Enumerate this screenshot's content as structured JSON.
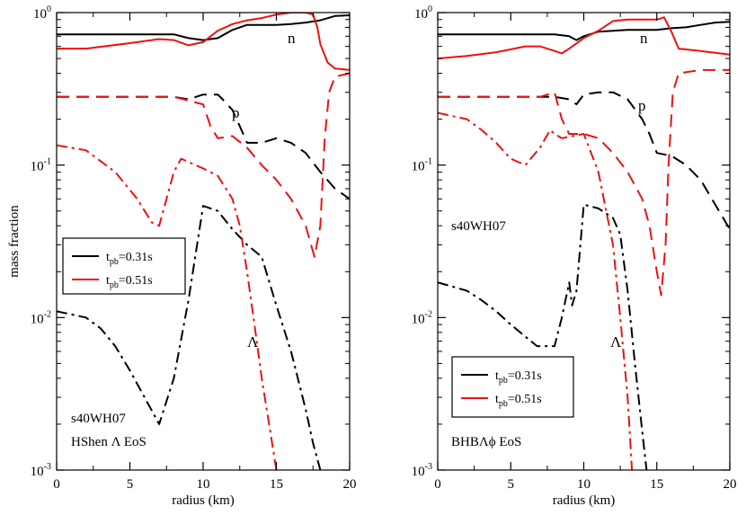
{
  "chart_data": [
    {
      "type": "line",
      "panel": "left",
      "xlabel": "radius (km)",
      "ylabel": "mass fraction",
      "xlim": [
        0,
        20
      ],
      "ylim": [
        0.001,
        1
      ],
      "yscale": "log",
      "xticks": [
        "0",
        "5",
        "10",
        "15",
        "20"
      ],
      "yticks": [
        {
          "base": "10",
          "exp": "0"
        },
        {
          "base": "10",
          "exp": "-1"
        },
        {
          "base": "10",
          "exp": "-2"
        },
        {
          "base": "10",
          "exp": "-3"
        }
      ],
      "legend": [
        {
          "text": "t",
          "sub": "pb",
          "suffix": "=0.31s",
          "color": "#000000"
        },
        {
          "text": "t",
          "sub": "pb",
          "suffix": "=0.51s",
          "color": "#ee1111"
        }
      ],
      "annotations": {
        "n": "n",
        "p": "p",
        "lambda": "Λ",
        "model": "s40WH07",
        "eos": "HShen Λ EoS"
      },
      "series": [
        {
          "name": "n t_pb=0.31s",
          "color": "#000000",
          "dash": "solid",
          "points": [
            [
              0,
              0.72
            ],
            [
              4,
              0.72
            ],
            [
              8,
              0.72
            ],
            [
              9,
              0.68
            ],
            [
              10,
              0.66
            ],
            [
              11,
              0.68
            ],
            [
              12,
              0.77
            ],
            [
              13,
              0.83
            ],
            [
              14,
              0.83
            ],
            [
              15,
              0.83
            ],
            [
              16,
              0.84
            ],
            [
              17,
              0.86
            ],
            [
              18,
              0.89
            ],
            [
              19,
              0.95
            ],
            [
              20,
              0.96
            ]
          ]
        },
        {
          "name": "n t_pb=0.51s",
          "color": "#ee1111",
          "dash": "solid",
          "points": [
            [
              0,
              0.58
            ],
            [
              2,
              0.58
            ],
            [
              5,
              0.63
            ],
            [
              7,
              0.67
            ],
            [
              8,
              0.66
            ],
            [
              9,
              0.61
            ],
            [
              10,
              0.64
            ],
            [
              11,
              0.76
            ],
            [
              12,
              0.84
            ],
            [
              13,
              0.89
            ],
            [
              14,
              0.92
            ],
            [
              15,
              0.97
            ],
            [
              16,
              1.0
            ],
            [
              17,
              1.0
            ],
            [
              17.5,
              0.97
            ],
            [
              17.8,
              0.8
            ],
            [
              18.0,
              0.62
            ],
            [
              18.5,
              0.47
            ],
            [
              19,
              0.43
            ],
            [
              20,
              0.42
            ]
          ]
        },
        {
          "name": "p t_pb=0.31s",
          "color": "#000000",
          "dash": "dash",
          "points": [
            [
              0,
              0.28
            ],
            [
              4,
              0.28
            ],
            [
              8,
              0.28
            ],
            [
              9,
              0.27
            ],
            [
              10,
              0.29
            ],
            [
              11,
              0.29
            ],
            [
              11.5,
              0.26
            ],
            [
              12,
              0.23
            ],
            [
              12.5,
              0.18
            ],
            [
              13,
              0.14
            ],
            [
              14,
              0.14
            ],
            [
              15,
              0.15
            ],
            [
              16,
              0.14
            ],
            [
              17,
              0.12
            ],
            [
              18,
              0.09
            ],
            [
              19,
              0.07
            ],
            [
              20,
              0.06
            ]
          ]
        },
        {
          "name": "p t_pb=0.51s",
          "color": "#ee1111",
          "dash": "dash",
          "points": [
            [
              0,
              0.28
            ],
            [
              6,
              0.28
            ],
            [
              8,
              0.28
            ],
            [
              10,
              0.25
            ],
            [
              10.5,
              0.18
            ],
            [
              11,
              0.15
            ],
            [
              12,
              0.155
            ],
            [
              13,
              0.13
            ],
            [
              14,
              0.1
            ],
            [
              15,
              0.08
            ],
            [
              16,
              0.06
            ],
            [
              17,
              0.04
            ],
            [
              17.6,
              0.025
            ],
            [
              18,
              0.04
            ],
            [
              18.3,
              0.15
            ],
            [
              18.6,
              0.3
            ],
            [
              19,
              0.38
            ],
            [
              20,
              0.4
            ]
          ]
        },
        {
          "name": "Lambda t_pb=0.31s",
          "color": "#000000",
          "dash": "dashdot",
          "points": [
            [
              0,
              0.011
            ],
            [
              2,
              0.01
            ],
            [
              3,
              0.0085
            ],
            [
              4,
              0.0065
            ],
            [
              5,
              0.0045
            ],
            [
              6,
              0.003
            ],
            [
              7,
              0.002
            ],
            [
              8,
              0.004
            ],
            [
              9,
              0.013
            ],
            [
              10,
              0.054
            ],
            [
              11,
              0.05
            ],
            [
              12,
              0.038
            ],
            [
              13,
              0.03
            ],
            [
              14,
              0.025
            ],
            [
              15,
              0.012
            ],
            [
              16,
              0.006
            ],
            [
              17,
              0.0025
            ],
            [
              17.5,
              0.0015
            ],
            [
              18,
              0.001
            ]
          ]
        },
        {
          "name": "Lambda t_pb=0.51s",
          "color": "#ee1111",
          "dash": "dashdot",
          "points": [
            [
              0,
              0.135
            ],
            [
              2,
              0.125
            ],
            [
              4,
              0.09
            ],
            [
              5.5,
              0.06
            ],
            [
              6.5,
              0.042
            ],
            [
              7,
              0.04
            ],
            [
              7.5,
              0.06
            ],
            [
              8,
              0.09
            ],
            [
              8.5,
              0.11
            ],
            [
              10,
              0.095
            ],
            [
              11,
              0.085
            ],
            [
              12,
              0.06
            ],
            [
              12.5,
              0.04
            ],
            [
              13,
              0.02
            ],
            [
              13.5,
              0.009
            ],
            [
              14,
              0.004
            ],
            [
              14.5,
              0.002
            ],
            [
              15,
              0.001
            ]
          ]
        }
      ]
    },
    {
      "type": "line",
      "panel": "right",
      "xlabel": "radius (km)",
      "ylabel": "",
      "xlim": [
        0,
        20
      ],
      "ylim": [
        0.001,
        1
      ],
      "yscale": "log",
      "xticks": [
        "0",
        "5",
        "10",
        "15",
        "20"
      ],
      "yticks": [
        {
          "base": "10",
          "exp": "0"
        },
        {
          "base": "10",
          "exp": "-1"
        },
        {
          "base": "10",
          "exp": "-2"
        },
        {
          "base": "10",
          "exp": "-3"
        }
      ],
      "legend": [
        {
          "text": "t",
          "sub": "pb",
          "suffix": "=0.31s",
          "color": "#000000"
        },
        {
          "text": "t",
          "sub": "pb",
          "suffix": "=0.51s",
          "color": "#ee1111"
        }
      ],
      "annotations": {
        "n": "n",
        "p": "p",
        "lambda": "Λ",
        "model": "s40WH07",
        "eos": "BHBΛϕ EoS"
      },
      "series": [
        {
          "name": "n t_pb=0.31s",
          "color": "#000000",
          "dash": "solid",
          "points": [
            [
              0,
              0.72
            ],
            [
              4,
              0.72
            ],
            [
              8,
              0.72
            ],
            [
              9,
              0.7
            ],
            [
              9.5,
              0.66
            ],
            [
              10,
              0.7
            ],
            [
              11,
              0.75
            ],
            [
              12,
              0.76
            ],
            [
              13,
              0.77
            ],
            [
              14,
              0.77
            ],
            [
              15,
              0.77
            ],
            [
              16,
              0.79
            ],
            [
              17,
              0.8
            ],
            [
              18,
              0.83
            ],
            [
              19,
              0.86
            ],
            [
              20,
              0.87
            ]
          ]
        },
        {
          "name": "n t_pb=0.51s",
          "color": "#ee1111",
          "dash": "solid",
          "points": [
            [
              0,
              0.5
            ],
            [
              2,
              0.52
            ],
            [
              4,
              0.55
            ],
            [
              6,
              0.6
            ],
            [
              7,
              0.6
            ],
            [
              8,
              0.56
            ],
            [
              8.5,
              0.54
            ],
            [
              9,
              0.58
            ],
            [
              10,
              0.68
            ],
            [
              11,
              0.76
            ],
            [
              12,
              0.88
            ],
            [
              13,
              0.9
            ],
            [
              14,
              0.9
            ],
            [
              15,
              0.9
            ],
            [
              15.5,
              0.93
            ],
            [
              16,
              0.75
            ],
            [
              16.5,
              0.58
            ],
            [
              18,
              0.56
            ],
            [
              20,
              0.53
            ]
          ]
        },
        {
          "name": "p t_pb=0.31s",
          "color": "#000000",
          "dash": "dash",
          "points": [
            [
              0,
              0.28
            ],
            [
              4,
              0.28
            ],
            [
              8,
              0.28
            ],
            [
              9,
              0.27
            ],
            [
              9.5,
              0.25
            ],
            [
              10,
              0.29
            ],
            [
              11,
              0.3
            ],
            [
              12,
              0.3
            ],
            [
              13,
              0.27
            ],
            [
              14,
              0.2
            ],
            [
              14.5,
              0.16
            ],
            [
              15,
              0.12
            ],
            [
              16,
              0.115
            ],
            [
              17,
              0.1
            ],
            [
              18,
              0.08
            ],
            [
              19,
              0.055
            ],
            [
              20,
              0.038
            ]
          ]
        },
        {
          "name": "p t_pb=0.51s",
          "color": "#ee1111",
          "dash": "dash",
          "points": [
            [
              0,
              0.28
            ],
            [
              6,
              0.28
            ],
            [
              7,
              0.28
            ],
            [
              8,
              0.3
            ],
            [
              8.5,
              0.2
            ],
            [
              9,
              0.16
            ],
            [
              10,
              0.16
            ],
            [
              11,
              0.15
            ],
            [
              12,
              0.12
            ],
            [
              13,
              0.09
            ],
            [
              14,
              0.06
            ],
            [
              14.5,
              0.04
            ],
            [
              15,
              0.02
            ],
            [
              15.3,
              0.014
            ],
            [
              15.6,
              0.03
            ],
            [
              15.8,
              0.1
            ],
            [
              16.1,
              0.3
            ],
            [
              16.5,
              0.4
            ],
            [
              18,
              0.42
            ],
            [
              20,
              0.42
            ]
          ]
        },
        {
          "name": "Lambda t_pb=0.31s",
          "color": "#000000",
          "dash": "dashdot",
          "points": [
            [
              0,
              0.017
            ],
            [
              2,
              0.015
            ],
            [
              3,
              0.013
            ],
            [
              4,
              0.011
            ],
            [
              5,
              0.009
            ],
            [
              6,
              0.0075
            ],
            [
              6.8,
              0.0065
            ],
            [
              8,
              0.0065
            ],
            [
              8.5,
              0.01
            ],
            [
              9,
              0.017
            ],
            [
              9.2,
              0.012
            ],
            [
              9.5,
              0.015
            ],
            [
              10,
              0.055
            ],
            [
              11,
              0.052
            ],
            [
              12,
              0.045
            ],
            [
              12.5,
              0.035
            ],
            [
              13,
              0.015
            ],
            [
              13.5,
              0.005
            ],
            [
              14,
              0.0018
            ],
            [
              14.3,
              0.001
            ]
          ]
        },
        {
          "name": "Lambda t_pb=0.51s",
          "color": "#ee1111",
          "dash": "dashdot",
          "points": [
            [
              0,
              0.22
            ],
            [
              2,
              0.2
            ],
            [
              3,
              0.17
            ],
            [
              4,
              0.14
            ],
            [
              5,
              0.11
            ],
            [
              6,
              0.1
            ],
            [
              7,
              0.13
            ],
            [
              7.7,
              0.17
            ],
            [
              8,
              0.16
            ],
            [
              8.5,
              0.15
            ],
            [
              10,
              0.16
            ],
            [
              11,
              0.09
            ],
            [
              12,
              0.03
            ],
            [
              12.5,
              0.01
            ],
            [
              13,
              0.003
            ],
            [
              13.3,
              0.001
            ]
          ]
        }
      ]
    }
  ]
}
